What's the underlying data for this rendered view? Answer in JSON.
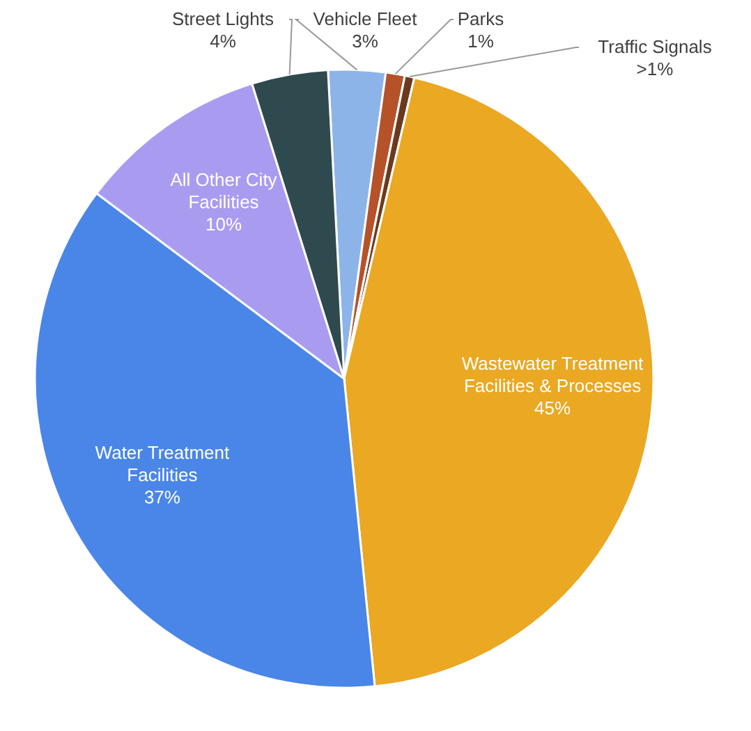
{
  "chart_data": {
    "type": "pie",
    "categories": [
      "Vehicle Fleet",
      "Parks",
      "Traffic Signals",
      "Wastewater Treatment Facilities & Processes",
      "Water Treatment Facilities",
      "All Other City Facilities",
      "Street Lights"
    ],
    "values": [
      3,
      1,
      0.5,
      45,
      37,
      10,
      4
    ],
    "value_labels": [
      "3%",
      "1%",
      ">1%",
      "45%",
      "37%",
      "10%",
      "4%"
    ],
    "colors": [
      "#8db4e8",
      "#b5522a",
      "#6b3a1e",
      "#eaa823",
      "#4a86e8",
      "#a99cf0",
      "#2f4a4f"
    ]
  }
}
